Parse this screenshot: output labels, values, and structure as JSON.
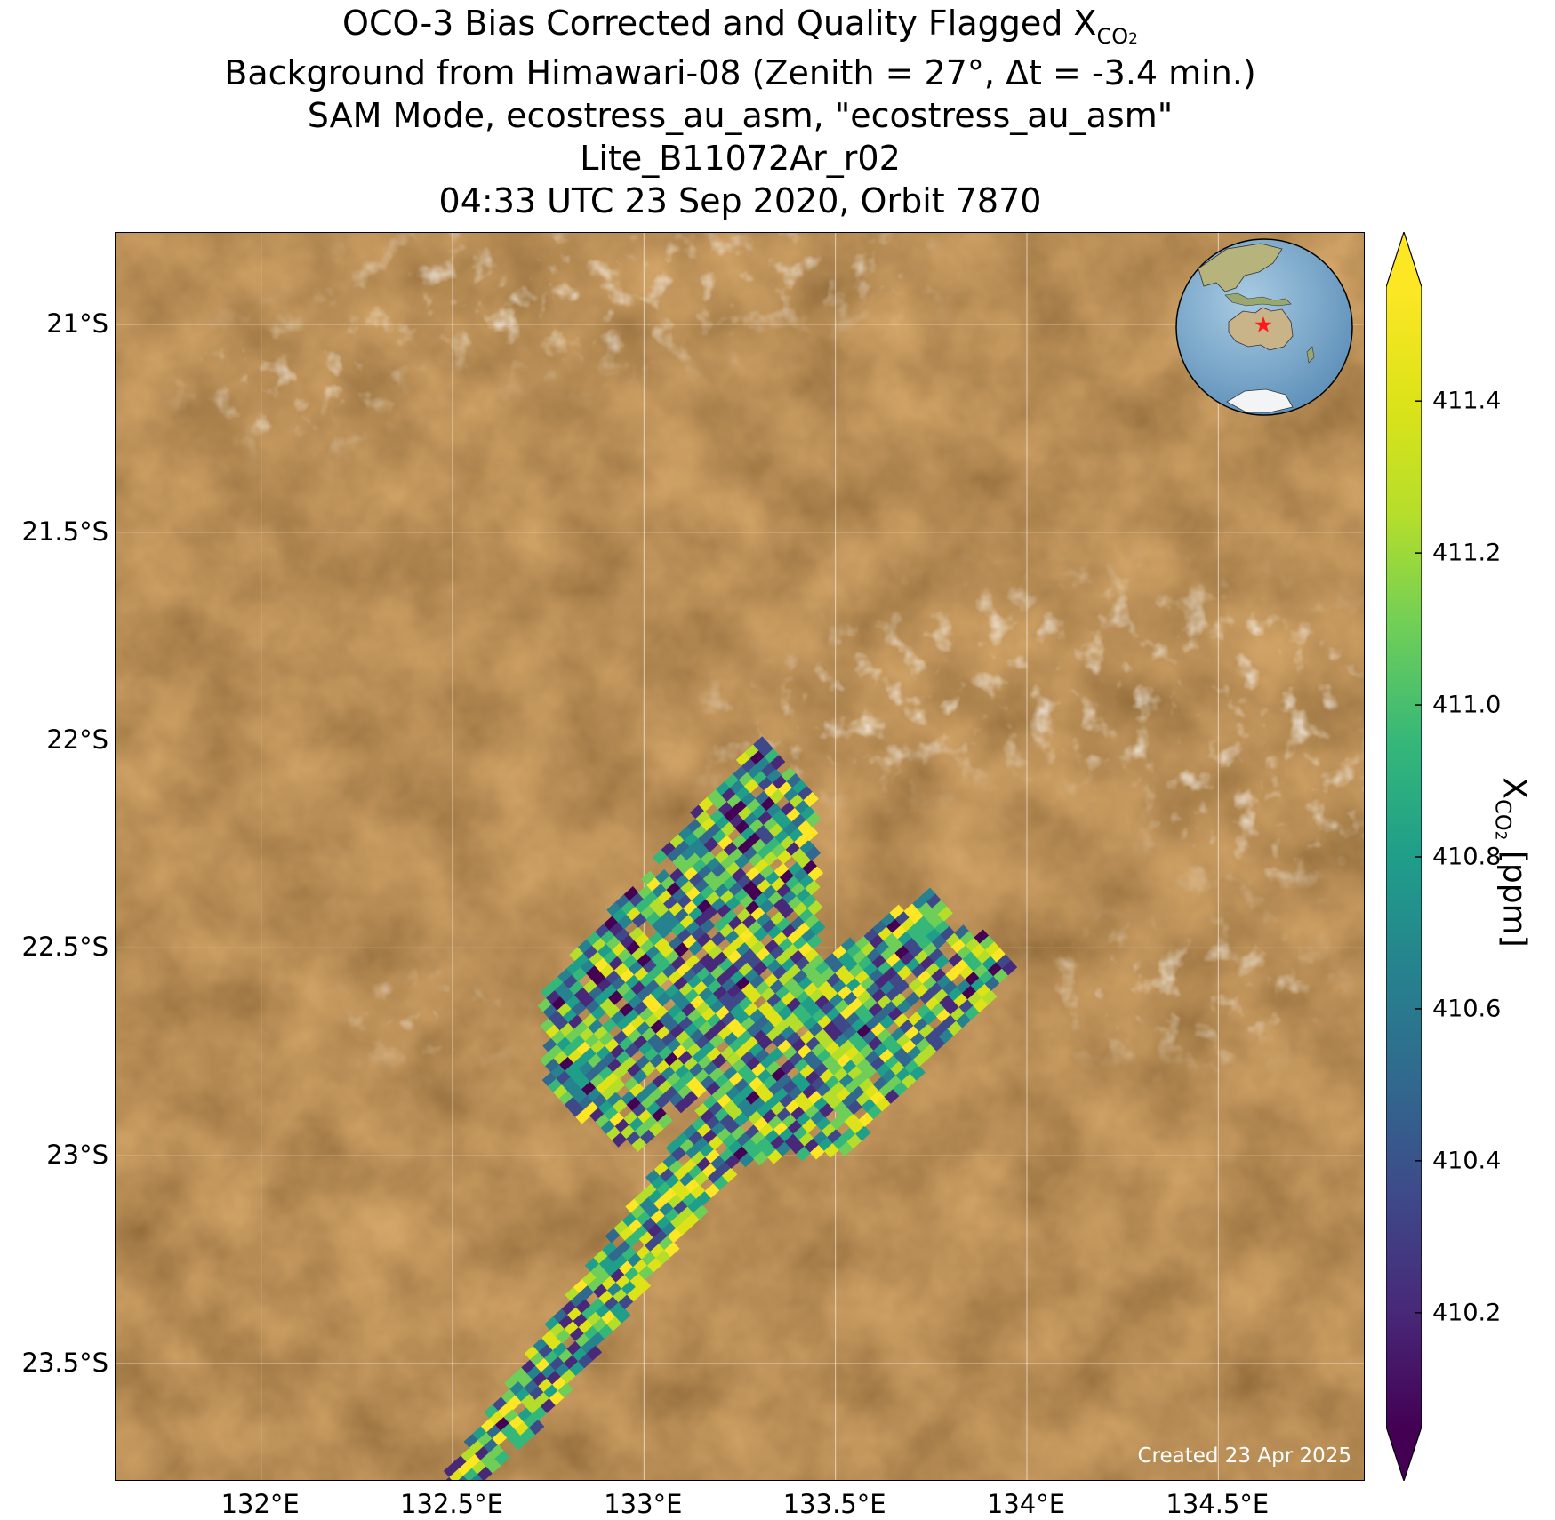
{
  "title": {
    "line1_prefix": "OCO-3 Bias Corrected and Quality Flagged X",
    "line1_sub": "CO",
    "line1_subsub": "2",
    "line2": "Background from Himawari-08 (Zenith = 27°, Δt = -3.4 min.)",
    "line3": "SAM Mode, ecostress_au_asm, \"ecostress_au_asm\"",
    "line4": "Lite_B11072Ar_r02",
    "line5": "04:33 UTC 23 Sep 2020, Orbit 7870"
  },
  "map": {
    "lon_range": [
      131.62,
      134.88
    ],
    "lat_range": [
      -23.78,
      -20.78
    ],
    "lat_ticks": [
      {
        "value": -21.0,
        "label": "21°S"
      },
      {
        "value": -21.5,
        "label": "21.5°S"
      },
      {
        "value": -22.0,
        "label": "22°S"
      },
      {
        "value": -22.5,
        "label": "22.5°S"
      },
      {
        "value": -23.0,
        "label": "23°S"
      },
      {
        "value": -23.5,
        "label": "23.5°S"
      }
    ],
    "lon_ticks": [
      {
        "value": 132.0,
        "label": "132°E"
      },
      {
        "value": 132.5,
        "label": "132.5°E"
      },
      {
        "value": 133.0,
        "label": "133°E"
      },
      {
        "value": 133.5,
        "label": "133.5°E"
      },
      {
        "value": 134.0,
        "label": "134°E"
      },
      {
        "value": 134.5,
        "label": "134.5°E"
      }
    ],
    "background": "satellite imagery, reddish-brown desert with scattered white clouds",
    "created_label": "Created 23 Apr 2025",
    "inset": "globe centered on Australia with red star marking the target"
  },
  "chart_data": {
    "type": "heatmap",
    "variable": "XCO2",
    "colormap": "viridis",
    "colorbar": {
      "min": 410.05,
      "max": 411.55,
      "extend": "both",
      "ticks": [
        410.2,
        410.4,
        410.6,
        410.8,
        411.0,
        411.2,
        411.4
      ],
      "tick_labels": [
        "410.2",
        "410.4",
        "410.6",
        "410.8",
        "411.0",
        "411.2",
        "411.4"
      ],
      "label_main": "X",
      "label_sub": "CO",
      "label_subsub": "2",
      "label_units": " [ppm]"
    },
    "swaths": [
      {
        "corners": [
          [
            132.74,
            -22.82
          ],
          [
            132.74,
            -22.6
          ],
          [
            133.3,
            -22.0
          ],
          [
            133.44,
            -22.12
          ],
          [
            133.46,
            -22.62
          ],
          [
            132.95,
            -23.0
          ]
        ],
        "mean": 410.75
      },
      {
        "corners": [
          [
            132.46,
            -23.8
          ],
          [
            133.35,
            -22.6
          ],
          [
            133.75,
            -22.36
          ],
          [
            133.97,
            -22.55
          ],
          [
            133.52,
            -23.0
          ],
          [
            133.25,
            -23.02
          ],
          [
            132.68,
            -23.7
          ],
          [
            132.55,
            -23.8
          ]
        ],
        "mean": 410.8
      }
    ]
  }
}
